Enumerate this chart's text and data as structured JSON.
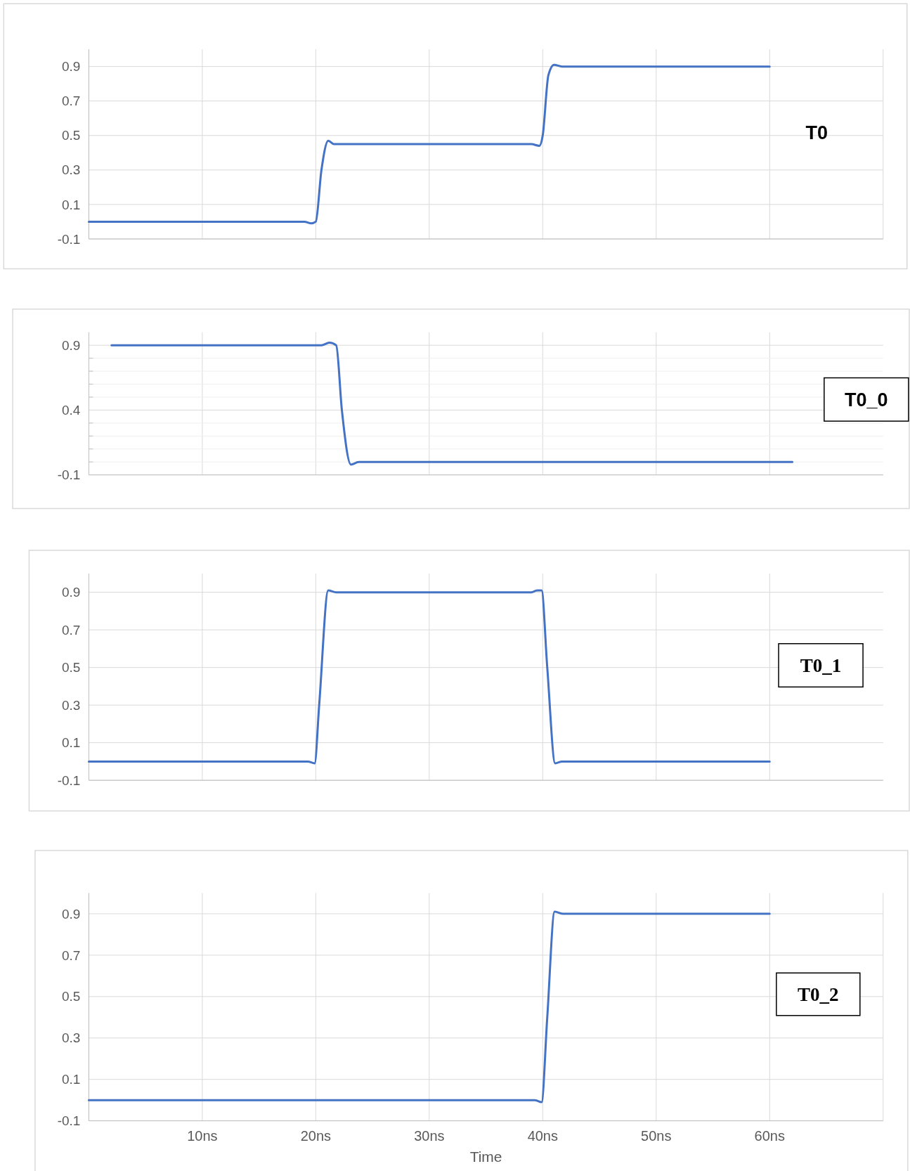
{
  "chart_data": [
    {
      "type": "line",
      "title": "T0",
      "x": [
        0,
        19,
        19.6,
        20,
        20.5,
        21.1,
        21.6,
        39,
        39.7,
        40,
        40.5,
        41,
        41.7,
        60
      ],
      "series": [
        {
          "color": "#4472c4",
          "values": [
            0,
            0,
            -0.01,
            0,
            0.3,
            0.47,
            0.45,
            0.45,
            0.44,
            0.5,
            0.85,
            0.91,
            0.9,
            0.9
          ]
        }
      ],
      "xlim": [
        0,
        70
      ],
      "xticks": [
        {
          "value": 0,
          "label": null
        },
        {
          "value": 10,
          "label": null
        },
        {
          "value": 20,
          "label": null
        },
        {
          "value": 30,
          "label": null
        },
        {
          "value": 40,
          "label": null
        },
        {
          "value": 50,
          "label": null
        },
        {
          "value": 60,
          "label": null
        },
        {
          "value": 70,
          "label": null
        }
      ],
      "ylim": [
        -0.1,
        1.0
      ],
      "yticks": [
        -0.1,
        0.1,
        0.3,
        0.5,
        0.7,
        0.9
      ],
      "grid": true,
      "tick_labels": "y",
      "marker": "none",
      "line_style": "solid"
    },
    {
      "type": "line",
      "title": "T0_0",
      "x": [
        2,
        20.5,
        21.2,
        21.8,
        22.3,
        23.1,
        23.8,
        62
      ],
      "series": [
        {
          "color": "#4472c4",
          "values": [
            0.9,
            0.9,
            0.92,
            0.9,
            0.4,
            -0.02,
            0,
            0
          ]
        }
      ],
      "xlim": [
        0,
        70
      ],
      "xticks": [
        {
          "value": 10,
          "label": null
        },
        {
          "value": 20,
          "label": null
        },
        {
          "value": 30,
          "label": null
        },
        {
          "value": 40,
          "label": null
        },
        {
          "value": 50,
          "label": null
        },
        {
          "value": 60,
          "label": null
        }
      ],
      "ylim": [
        -0.1,
        1.0
      ],
      "yticks": [
        -0.1,
        {
          "value": 0,
          "label": null
        },
        {
          "value": 0.1,
          "label": null
        },
        {
          "value": 0.2,
          "label": null
        },
        {
          "value": 0.3,
          "label": null
        },
        0.4,
        {
          "value": 0.5,
          "label": null
        },
        {
          "value": 0.6,
          "label": null
        },
        {
          "value": 0.7,
          "label": null
        },
        {
          "value": 0.8,
          "label": null
        },
        0.9
      ],
      "grid": true,
      "tick_labels": "y",
      "marker": "none",
      "line_style": "solid"
    },
    {
      "type": "line",
      "title": "T0_1",
      "x": [
        0,
        19.3,
        19.9,
        20.3,
        21.1,
        21.8,
        39,
        39.5,
        39.9,
        40.4,
        41.1,
        41.7,
        60
      ],
      "series": [
        {
          "color": "#4472c4",
          "values": [
            0,
            0,
            -0.01,
            0.3,
            0.91,
            0.9,
            0.9,
            0.91,
            0.91,
            0.5,
            -0.01,
            0,
            0
          ]
        }
      ],
      "xlim": [
        0,
        70
      ],
      "xticks": [
        {
          "value": 10,
          "label": null
        },
        {
          "value": 20,
          "label": null
        },
        {
          "value": 30,
          "label": null
        },
        {
          "value": 40,
          "label": null
        },
        {
          "value": 50,
          "label": null
        },
        {
          "value": 60,
          "label": null
        }
      ],
      "ylim": [
        -0.1,
        1.0
      ],
      "yticks": [
        -0.1,
        0.1,
        0.3,
        0.5,
        0.7,
        0.9
      ],
      "grid": true,
      "tick_labels": "y",
      "marker": "none",
      "line_style": "solid"
    },
    {
      "type": "line",
      "title": "T0_2",
      "xlabel": "Time",
      "x": [
        0,
        39.3,
        39.9,
        40.4,
        41.05,
        41.8,
        60
      ],
      "series": [
        {
          "color": "#4472c4",
          "values": [
            0,
            0,
            -0.01,
            0.4,
            0.91,
            0.9,
            0.9
          ]
        }
      ],
      "xlim": [
        0,
        70
      ],
      "xticks": [
        {
          "value": 0,
          "label": null
        },
        {
          "value": 10,
          "label": "10ns"
        },
        {
          "value": 20,
          "label": "20ns"
        },
        {
          "value": 30,
          "label": "30ns"
        },
        {
          "value": 40,
          "label": "40ns"
        },
        {
          "value": 50,
          "label": "50ns"
        },
        {
          "value": 60,
          "label": "60ns"
        },
        {
          "value": 70,
          "label": null
        }
      ],
      "ylim": [
        -0.1,
        1.0
      ],
      "yticks": [
        -0.1,
        0.1,
        0.3,
        0.5,
        0.7,
        0.9
      ],
      "grid": true,
      "marker": "none",
      "line_style": "solid"
    }
  ]
}
